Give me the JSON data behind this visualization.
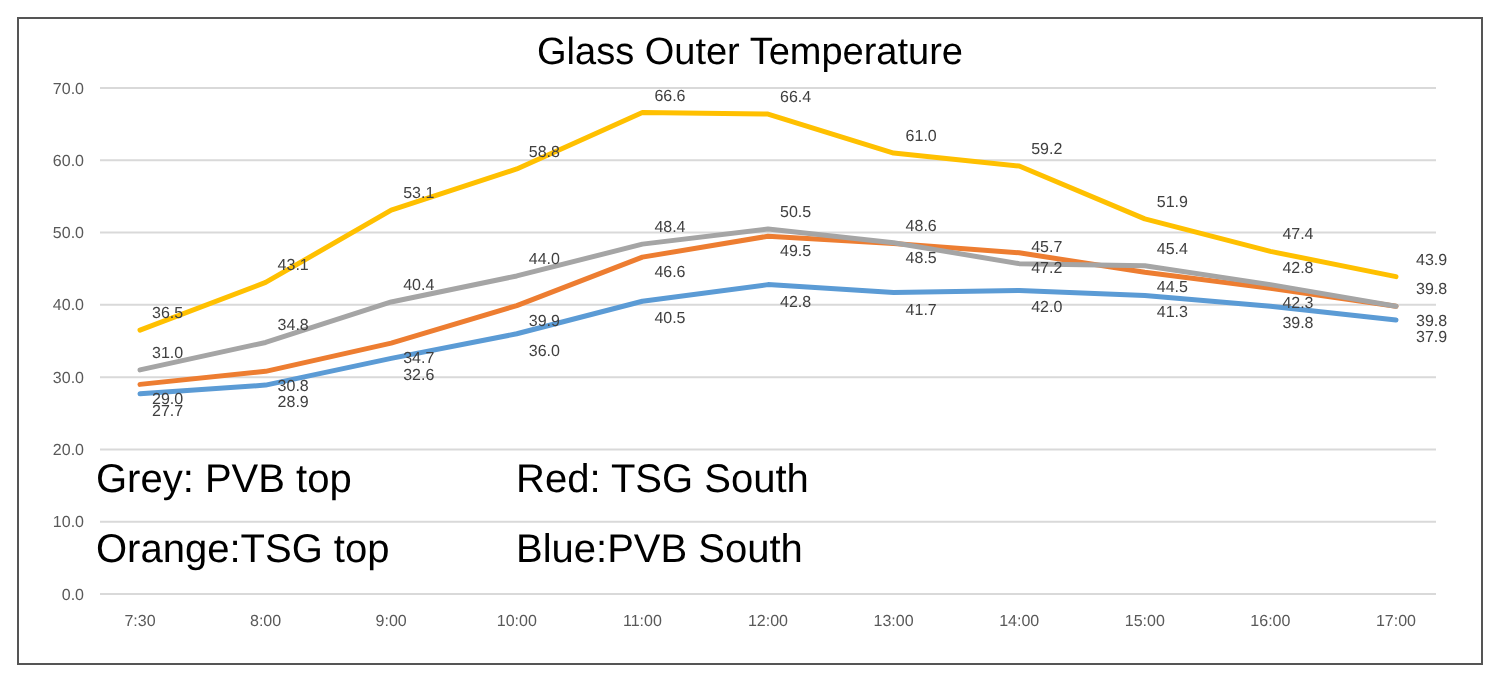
{
  "chart_data": {
    "type": "line",
    "title": "Glass Outer Temperature",
    "categories": [
      "7:30",
      "8:00",
      "9:00",
      "10:00",
      "11:00",
      "12:00",
      "13:00",
      "14:00",
      "15:00",
      "16:00",
      "17:00"
    ],
    "series": [
      {
        "color": "#5b9bd5",
        "values": [
          27.7,
          28.9,
          32.6,
          36.0,
          40.5,
          42.8,
          41.7,
          42.0,
          41.3,
          39.8,
          37.9
        ],
        "value_labels": [
          "27.7",
          "28.9",
          "32.6",
          "36.0",
          "40.5",
          "42.8",
          "41.7",
          "42.0",
          "41.3",
          "39.8",
          "37.9"
        ]
      },
      {
        "color": "#ed7d31",
        "values": [
          29.0,
          30.8,
          34.7,
          39.9,
          46.6,
          49.5,
          48.5,
          47.2,
          44.5,
          42.3,
          39.8
        ],
        "value_labels": [
          "29.0",
          "30.8",
          "34.7",
          "39.9",
          "46.6",
          "49.5",
          "48.5",
          "47.2",
          "44.5",
          "42.3",
          "39.8"
        ]
      },
      {
        "color": "#a5a5a5",
        "values": [
          31.0,
          34.8,
          40.4,
          44.0,
          48.4,
          50.5,
          48.6,
          45.7,
          45.4,
          42.8,
          39.8
        ],
        "value_labels": [
          "31.0",
          "34.8",
          "40.4",
          "44.0",
          "48.4",
          "50.5",
          "48.6",
          "45.7",
          "45.4",
          "42.8",
          "39.8"
        ]
      },
      {
        "color": "#ffc000",
        "values": [
          36.5,
          43.1,
          53.1,
          58.8,
          66.6,
          66.4,
          61.0,
          59.2,
          51.9,
          47.4,
          43.9
        ],
        "value_labels": [
          "36.5",
          "43.1",
          "53.1",
          "58.8",
          "66.6",
          "66.4",
          "61.0",
          "59.2",
          "51.9",
          "47.4",
          "43.9"
        ]
      }
    ],
    "ylim": [
      0,
      70
    ],
    "yticks": [
      {
        "value": 0,
        "label": "0.0"
      },
      {
        "value": 10,
        "label": "10.0"
      },
      {
        "value": 20,
        "label": "20.0"
      },
      {
        "value": 30,
        "label": "30.0"
      },
      {
        "value": 40,
        "label": "40.0"
      },
      {
        "value": 50,
        "label": "50.0"
      },
      {
        "value": 60,
        "label": "60.0"
      },
      {
        "value": 70,
        "label": "70.0"
      }
    ],
    "grid": "y",
    "line_style": "solid",
    "annotations": [
      "Grey: PVB top",
      "Red: TSG South",
      "Orange:TSG top",
      "Blue:PVB South"
    ]
  }
}
